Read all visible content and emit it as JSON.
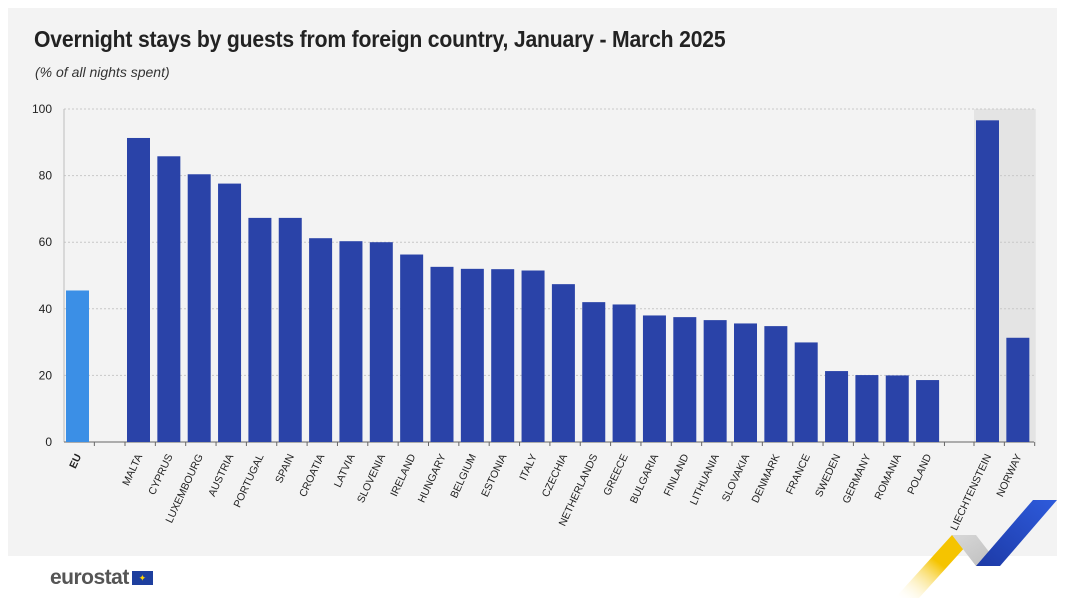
{
  "header": {
    "title": "Overnight stays by guests from foreign country, January - March 2025",
    "subtitle": "(% of all nights spent)"
  },
  "footer": {
    "logo_text": "eurostat"
  },
  "colors": {
    "eu_bar": "#3b8fe6",
    "country_bar": "#2a43a8",
    "panel_bg": "#f3f3f3",
    "efta_bg": "#e4e4e4",
    "grid": "#c8c8c8",
    "text": "#222222"
  },
  "chart_data": {
    "type": "bar",
    "title": "Overnight stays by guests from foreign country, January - March 2025",
    "subtitle": "(% of all nights spent)",
    "ylim": [
      0,
      100
    ],
    "yticks": [
      0,
      20,
      40,
      60,
      80,
      100
    ],
    "grid": true,
    "groups": [
      {
        "name": "eu",
        "categories": [
          "EU"
        ],
        "values": [
          45.5
        ]
      },
      {
        "name": "member-states",
        "categories": [
          "MALTA",
          "CYPRUS",
          "LUXEMBOURG",
          "AUSTRIA",
          "PORTUGAL",
          "SPAIN",
          "CROATIA",
          "LATVIA",
          "SLOVENIA",
          "IRELAND",
          "HUNGARY",
          "BELGIUM",
          "ESTONIA",
          "ITALY",
          "CZECHIA",
          "NETHERLANDS",
          "GREECE",
          "BULGARIA",
          "FINLAND",
          "LITHUANIA",
          "SLOVAKIA",
          "DENMARK",
          "FRANCE",
          "SWEDEN",
          "GERMANY",
          "ROMANIA",
          "POLAND"
        ],
        "values": [
          91.3,
          85.8,
          80.4,
          77.6,
          67.3,
          67.3,
          61.2,
          60.3,
          60.0,
          56.3,
          52.6,
          52.0,
          51.9,
          51.5,
          47.4,
          42.0,
          41.3,
          38.0,
          37.5,
          36.6,
          35.6,
          34.8,
          29.9,
          21.3,
          20.1,
          20.0,
          18.6
        ]
      },
      {
        "name": "efta",
        "categories": [
          "LIECHTENSTEIN",
          "NORWAY"
        ],
        "values": [
          96.6,
          31.3
        ]
      }
    ]
  }
}
